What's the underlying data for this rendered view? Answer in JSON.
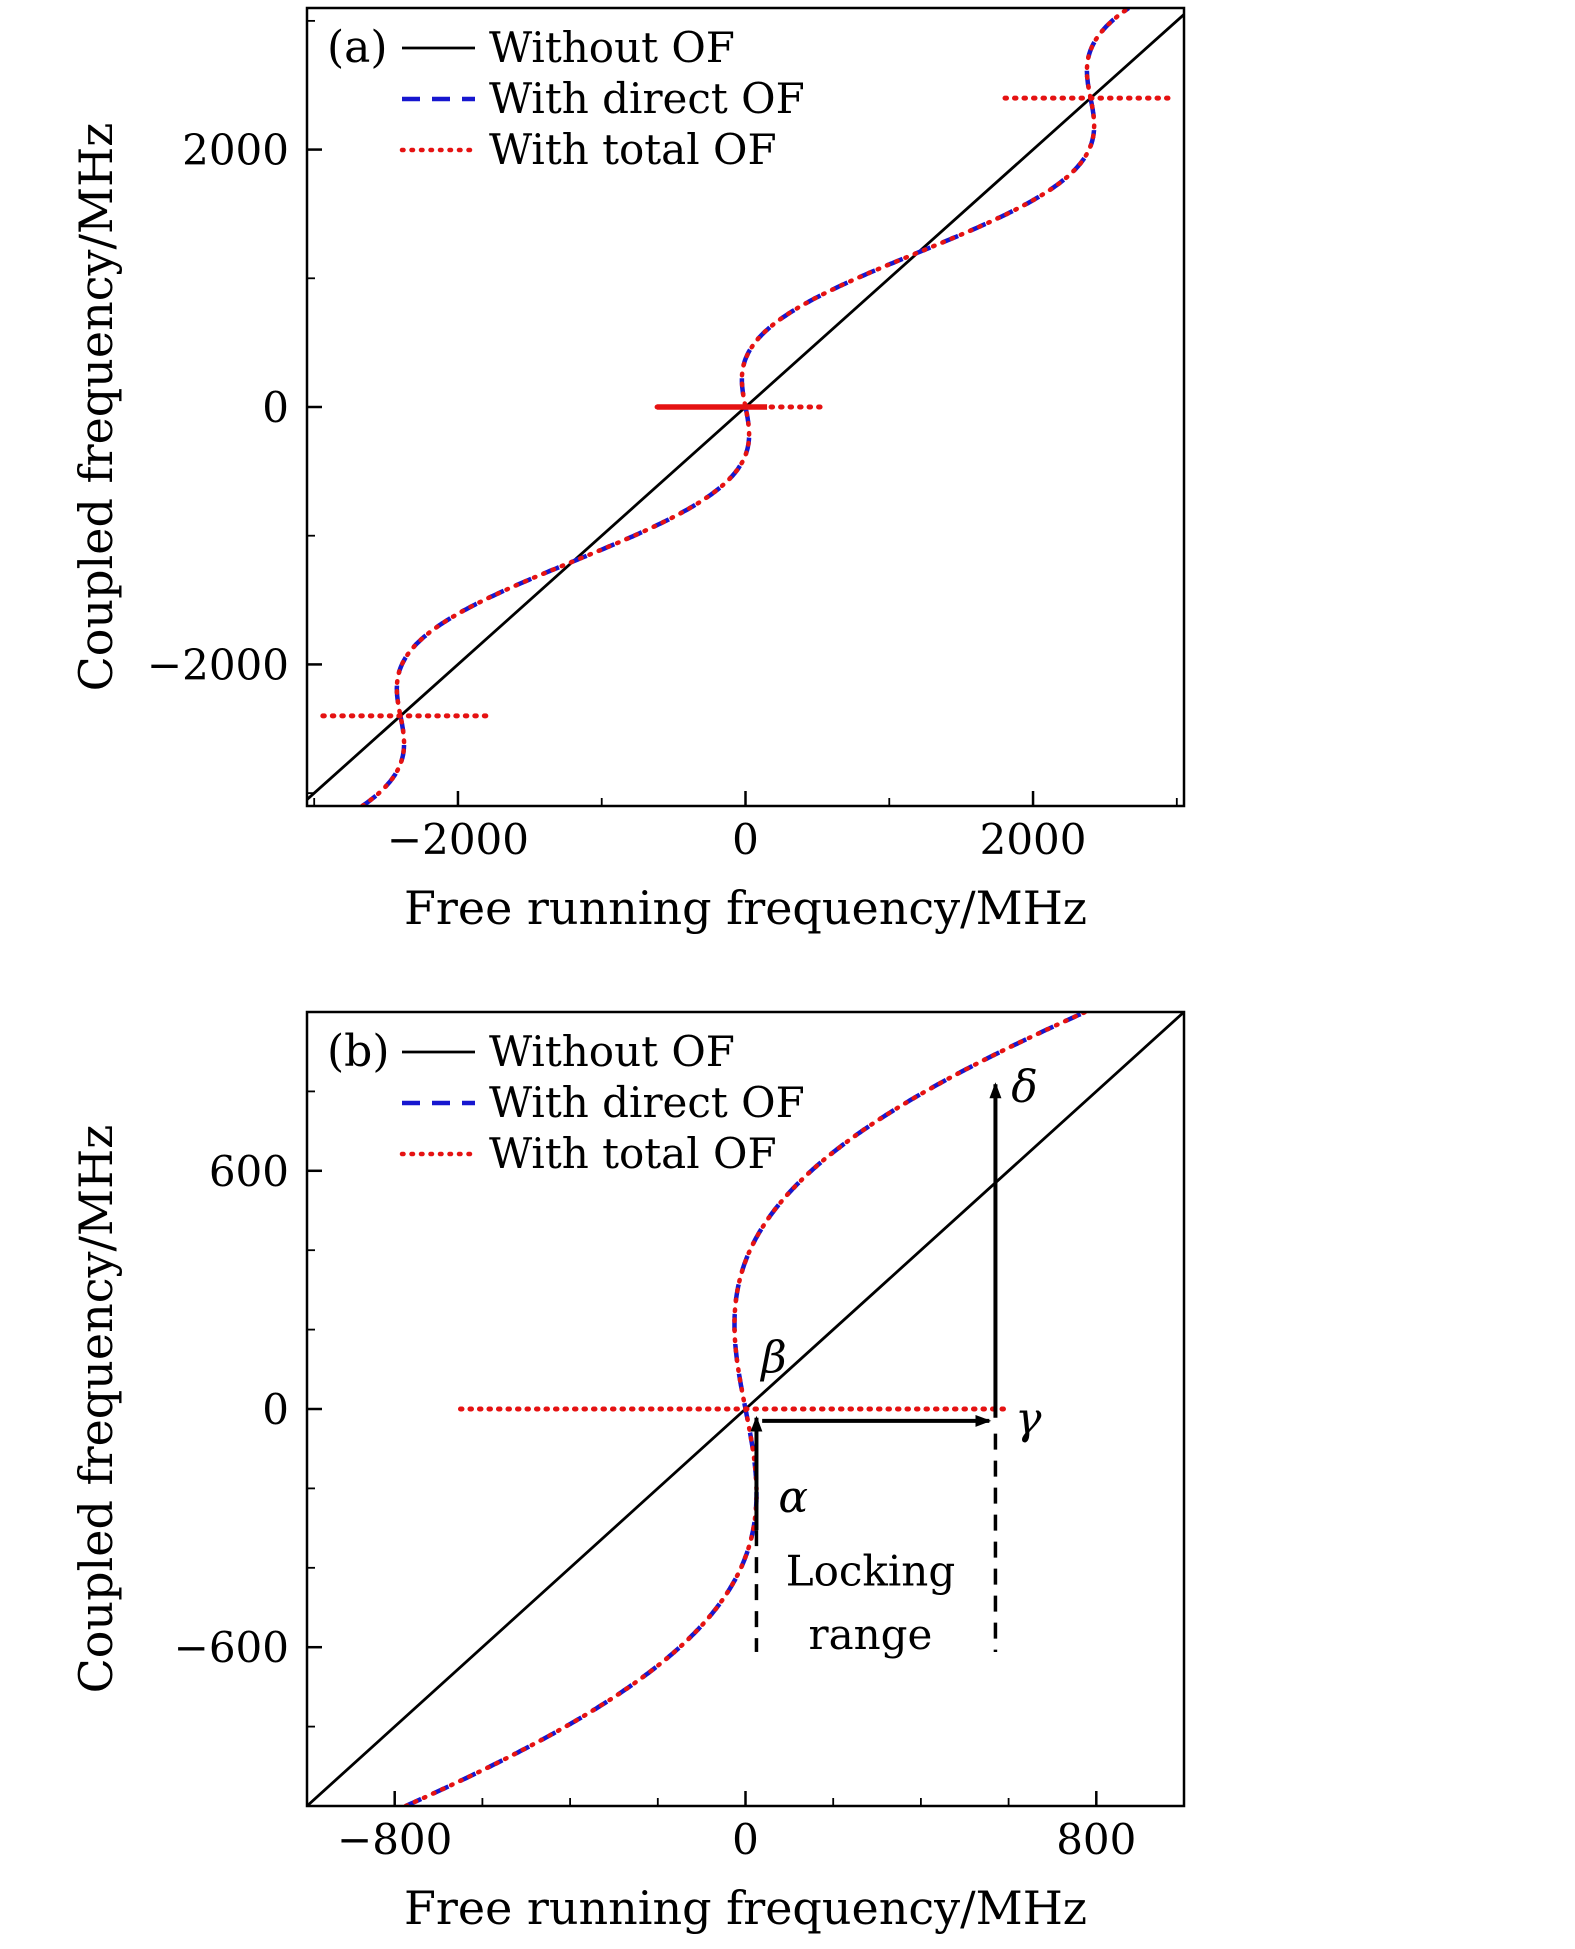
{
  "page": {
    "background": "#ffffff"
  },
  "chart_data": [
    {
      "type": "line",
      "panel_label": "(a)",
      "xlabel": "Free running frequency/MHz",
      "ylabel": "Coupled frequency/MHz",
      "xlim": [
        -3050,
        3050
      ],
      "ylim": [
        -3100,
        3100
      ],
      "xticks": [
        -2000,
        0,
        2000
      ],
      "yticks": [
        -2000,
        0,
        2000
      ],
      "minor_tick_step": {
        "x": 1000,
        "y": 1000
      },
      "grid": false,
      "legend_position": "top-left",
      "legend": [
        {
          "label": "Without OF",
          "color": "#000000",
          "style": "solid"
        },
        {
          "label": "With direct OF",
          "color": "#1616cf",
          "style": "dashed"
        },
        {
          "label": "With total OF",
          "color": "#e51212",
          "style": "dotted"
        }
      ],
      "series": [
        {
          "name": "Without OF",
          "kind": "identity_diagonal",
          "color": "#000000",
          "style": "solid"
        },
        {
          "name": "With direct OF",
          "kind": "feedback_tuning_curve",
          "color": "#1616cf",
          "style": "dashed",
          "model": "x = y - A*sin(2*pi*y/P)",
          "amplitude_MHz": 450,
          "period_MHz": 2400
        },
        {
          "name": "With total OF",
          "kind": "feedback_tuning_curve_with_locking",
          "color": "#e51212",
          "style": "dotted",
          "model": "x = y - A*sin(2*pi*y/P)",
          "amplitude_MHz": 450,
          "period_MHz": 2400,
          "locking_plateaus": [
            {
              "y": 0,
              "x_from": -615,
              "x_to": 150,
              "line": "solid"
            },
            {
              "y": 0,
              "x_from": -615,
              "x_to": 553,
              "line": "dotted"
            },
            {
              "y": 2400,
              "x_from": 1805,
              "x_to": 2940,
              "line": "dotted"
            },
            {
              "y": -2400,
              "x_from": -2940,
              "x_to": -1805,
              "line": "dotted"
            }
          ]
        }
      ]
    },
    {
      "type": "line",
      "panel_label": "(b)",
      "xlabel": "Free running frequency/MHz",
      "ylabel": "Coupled frequency/MHz",
      "xlim": [
        -1000,
        1000
      ],
      "ylim": [
        -1000,
        1000
      ],
      "xticks": [
        -800,
        0,
        800
      ],
      "yticks": [
        -600,
        0,
        600
      ],
      "minor_tick_step": {
        "x": 200,
        "y": 200
      },
      "grid": false,
      "legend_position": "top-left",
      "legend": [
        {
          "label": "Without OF",
          "color": "#000000",
          "style": "solid"
        },
        {
          "label": "With direct OF",
          "color": "#1616cf",
          "style": "dashed"
        },
        {
          "label": "With total OF",
          "color": "#e51212",
          "style": "dotted"
        }
      ],
      "series": [
        {
          "name": "Without OF",
          "kind": "identity_diagonal",
          "color": "#000000",
          "style": "solid"
        },
        {
          "name": "With direct OF",
          "kind": "feedback_tuning_curve",
          "color": "#1616cf",
          "style": "dashed",
          "model": "x = y - A*sin(2*pi*y/P)",
          "amplitude_MHz": 450,
          "period_MHz": 2400
        },
        {
          "name": "With total OF",
          "kind": "feedback_tuning_curve_with_locking",
          "color": "#e51212",
          "style": "dotted",
          "model": "x = y - A*sin(2*pi*y/P)",
          "amplitude_MHz": 450,
          "period_MHz": 2400,
          "locking_plateaus": [
            {
              "y": 0,
              "x_from": -650,
              "x_to": 590,
              "line": "dotted"
            }
          ]
        }
      ],
      "annotations": {
        "points": [
          {
            "label": "α",
            "x": 75,
            "y": -260
          },
          {
            "label": "β",
            "x": 36,
            "y": 92
          },
          {
            "label": "γ",
            "x": 615,
            "y": -62
          },
          {
            "label": "δ",
            "x": 606,
            "y": 775
          }
        ],
        "arrows": [
          {
            "x1": 25,
            "y1": -305,
            "x2": 25,
            "y2": -22
          },
          {
            "x1": 38,
            "y1": -30,
            "x2": 556,
            "y2": -30
          },
          {
            "x1": 570,
            "y1": -22,
            "x2": 570,
            "y2": 818
          }
        ],
        "dashed_guides": [
          {
            "x1": 25,
            "y1": -305,
            "x2": 25,
            "y2": -612
          },
          {
            "x1": 570,
            "y1": -62,
            "x2": 570,
            "y2": -612
          }
        ],
        "locking_range_text": {
          "lines": [
            "Locking",
            "range"
          ],
          "x": 285,
          "y": -445,
          "line_gap": 160
        }
      }
    }
  ]
}
